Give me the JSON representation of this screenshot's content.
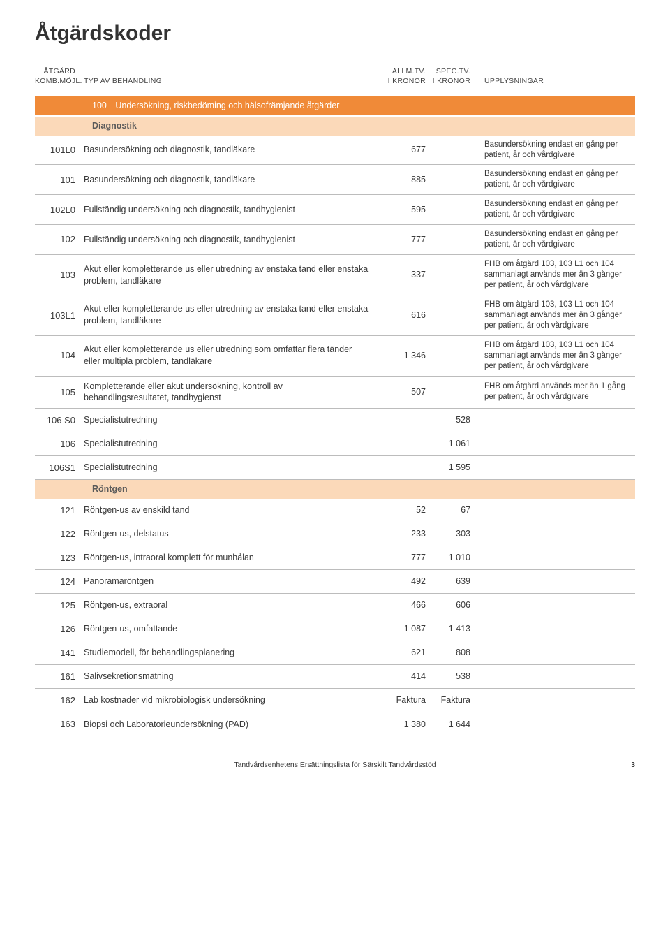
{
  "page": {
    "title": "Åtgärdskoder",
    "footer_text": "Tandvårdsenhetens Ersättningslista för Särskilt Tandvårdsstöd",
    "page_number": "3"
  },
  "table_header": {
    "code_line1": "ÅTGÄRD",
    "code_line2": "KOMB.MÖJL.",
    "type_label": "TYP AV BEHANDLING",
    "allm_line1": "ALLM.TV.",
    "allm_line2": "I KRONOR",
    "spec_line1": "SPEC.TV.",
    "spec_line2": "I KRONOR",
    "info_label": "UPPLYSNINGAR"
  },
  "colors": {
    "section_bg": "#f08a38",
    "section_fg": "#ffffff",
    "sub_bg": "#fbd9b9",
    "sub_fg": "#5a5a5a",
    "border": "#bcbcbc",
    "text": "#3a3a3a"
  },
  "sections": [
    {
      "section_title": "100 Undersökning, riskbedöming och hälsofrämjande åtgärder",
      "groups": [
        {
          "sub_title": "Diagnostik",
          "rows": [
            {
              "code": "101L0",
              "type": "Basundersökning och diagnostik, tandläkare",
              "allm": "677",
              "spec": "",
              "info": "Basundersökning endast en gång per patient, år och vårdgivare"
            },
            {
              "code": "101",
              "type": "Basundersökning och diagnostik, tandläkare",
              "allm": "885",
              "spec": "",
              "info": "Basundersökning endast en gång per patient, år och vårdgivare"
            },
            {
              "code": "102L0",
              "type": "Fullständig undersökning och diagnostik, tandhygienist",
              "allm": "595",
              "spec": "",
              "info": "Basundersökning endast en gång per patient, år och vårdgivare"
            },
            {
              "code": "102",
              "type": "Fullständig undersökning och diagnostik, tandhygienist",
              "allm": "777",
              "spec": "",
              "info": "Basundersökning endast en gång per patient, år och vårdgivare"
            },
            {
              "code": "103",
              "type": "Akut eller kompletterande us eller utredning av enstaka tand eller enstaka problem, tandläkare",
              "allm": "337",
              "spec": "",
              "info": "FHB om åtgärd 103, 103 L1 och 104 sammanlagt används mer än 3 gånger per patient, år och vårdgivare"
            },
            {
              "code": "103L1",
              "type": "Akut eller kompletterande us eller utredning av enstaka tand eller enstaka problem, tandläkare",
              "allm": "616",
              "spec": "",
              "info": "FHB om åtgärd 103, 103 L1 och 104 sammanlagt används mer än 3 gånger per patient, år och vårdgivare"
            },
            {
              "code": "104",
              "type": "Akut eller kompletterande us eller utredning som omfattar flera tänder eller multipla problem, tandläkare",
              "allm": "1 346",
              "spec": "",
              "info": "FHB om åtgärd 103, 103 L1 och 104 sammanlagt används mer än 3 gånger per patient, år och vårdgivare"
            },
            {
              "code": "105",
              "type": "Kompletterande eller akut undersökning, kontroll av behandlingsresultatet, tandhygienst",
              "allm": "507",
              "spec": "",
              "info": "FHB om åtgärd används mer än 1 gång per patient, år och vårdgivare"
            },
            {
              "code": "106 S0",
              "type": "Specialistutredning",
              "allm": "",
              "spec": "528",
              "info": ""
            },
            {
              "code": "106",
              "type": "Specialistutredning",
              "allm": "",
              "spec": "1 061",
              "info": ""
            },
            {
              "code": "106S1",
              "type": "Specialistutredning",
              "allm": "",
              "spec": "1 595",
              "info": ""
            }
          ]
        },
        {
          "sub_title": "Röntgen",
          "rows": [
            {
              "code": "121",
              "type": "Röntgen-us av enskild tand",
              "allm": "52",
              "spec": "67",
              "info": ""
            },
            {
              "code": "122",
              "type": "Röntgen-us, delstatus",
              "allm": "233",
              "spec": "303",
              "info": ""
            },
            {
              "code": "123",
              "type": "Röntgen-us, intraoral komplett för munhålan",
              "allm": "777",
              "spec": "1 010",
              "info": ""
            },
            {
              "code": "124",
              "type": "Panoramaröntgen",
              "allm": "492",
              "spec": "639",
              "info": ""
            },
            {
              "code": "125",
              "type": "Röntgen-us, extraoral",
              "allm": "466",
              "spec": "606",
              "info": ""
            },
            {
              "code": "126",
              "type": "Röntgen-us, omfattande",
              "allm": "1 087",
              "spec": "1 413",
              "info": ""
            },
            {
              "code": "141",
              "type": "Studiemodell, för behandlingsplanering",
              "allm": "621",
              "spec": "808",
              "info": ""
            },
            {
              "code": "161",
              "type": "Salivsekretionsmätning",
              "allm": "414",
              "spec": "538",
              "info": ""
            },
            {
              "code": "162",
              "type": "Lab kostnader vid mikrobiologisk undersökning",
              "allm": "Faktura",
              "spec": "Faktura",
              "info": ""
            },
            {
              "code": "163",
              "type": "Biopsi och Laboratorieundersökning (PAD)",
              "allm": "1 380",
              "spec": "1 644",
              "info": ""
            }
          ]
        }
      ]
    }
  ]
}
